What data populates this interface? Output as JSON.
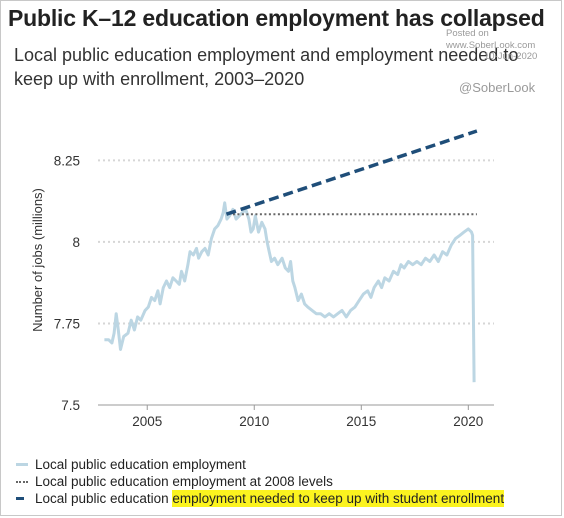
{
  "header": {
    "title": "Public K–12 education employment has collapsed",
    "subtitle": "Local public education employment and employment needed to keep up with enrollment, 2003–2020",
    "posted_label": "Posted on",
    "posted_site": "www.SoberLook.com",
    "posted_date": "10-Jun-2020",
    "handle": "@SoberLook"
  },
  "colors": {
    "employment": "#bcd6e3",
    "level_2008": "#666666",
    "needed": "#1f4e79",
    "highlight": "#fbf31f",
    "grid": "#d6d6d6"
  },
  "legend": {
    "employment": "Local public education employment",
    "level_2008": "Local public education employment at 2008 levels",
    "needed_part1": "Local public education ",
    "needed_part2": "employment needed to keep up with student enrollment"
  },
  "chart_data": {
    "type": "line",
    "ylabel": "Number of jobs (millions)",
    "xlabel": "",
    "xlim": [
      2002.7,
      2021.2
    ],
    "ylim": [
      7.5,
      8.34
    ],
    "y_ticks": [
      7.5,
      7.75,
      8,
      8.25
    ],
    "y_tick_labels": [
      "7.5",
      "7.75",
      "8",
      "8.25"
    ],
    "x_ticks": [
      2005,
      2010,
      2015,
      2020
    ],
    "x_tick_labels": [
      "2005",
      "2010",
      "2015",
      "2020"
    ],
    "grid": "horizontal dotted",
    "legend_position": "bottom",
    "series": [
      {
        "name": "Local public education employment",
        "style": "solid",
        "points": [
          [
            2003.0,
            7.7
          ],
          [
            2003.2,
            7.7
          ],
          [
            2003.35,
            7.69
          ],
          [
            2003.45,
            7.72
          ],
          [
            2003.55,
            7.78
          ],
          [
            2003.65,
            7.73
          ],
          [
            2003.75,
            7.67
          ],
          [
            2003.9,
            7.71
          ],
          [
            2004.1,
            7.72
          ],
          [
            2004.25,
            7.76
          ],
          [
            2004.4,
            7.73
          ],
          [
            2004.55,
            7.77
          ],
          [
            2004.7,
            7.76
          ],
          [
            2004.9,
            7.79
          ],
          [
            2005.05,
            7.8
          ],
          [
            2005.2,
            7.83
          ],
          [
            2005.35,
            7.82
          ],
          [
            2005.5,
            7.85
          ],
          [
            2005.6,
            7.81
          ],
          [
            2005.75,
            7.86
          ],
          [
            2005.9,
            7.88
          ],
          [
            2006.05,
            7.86
          ],
          [
            2006.2,
            7.89
          ],
          [
            2006.35,
            7.88
          ],
          [
            2006.5,
            7.87
          ],
          [
            2006.6,
            7.91
          ],
          [
            2006.75,
            7.88
          ],
          [
            2006.9,
            7.93
          ],
          [
            2007.0,
            7.97
          ],
          [
            2007.15,
            7.96
          ],
          [
            2007.3,
            7.98
          ],
          [
            2007.4,
            7.95
          ],
          [
            2007.55,
            7.97
          ],
          [
            2007.7,
            7.98
          ],
          [
            2007.85,
            7.96
          ],
          [
            2008.0,
            8.01
          ],
          [
            2008.15,
            8.04
          ],
          [
            2008.3,
            8.05
          ],
          [
            2008.45,
            8.07
          ],
          [
            2008.55,
            8.09
          ],
          [
            2008.62,
            8.12
          ],
          [
            2008.72,
            8.07
          ],
          [
            2008.85,
            8.08
          ],
          [
            2009.0,
            8.1
          ],
          [
            2009.15,
            8.07
          ],
          [
            2009.3,
            8.08
          ],
          [
            2009.45,
            8.09
          ],
          [
            2009.6,
            8.1
          ],
          [
            2009.75,
            8.07
          ],
          [
            2009.85,
            8.03
          ],
          [
            2009.95,
            8.04
          ],
          [
            2010.05,
            8.08
          ],
          [
            2010.2,
            8.03
          ],
          [
            2010.35,
            8.06
          ],
          [
            2010.5,
            8.04
          ],
          [
            2010.6,
            8.0
          ],
          [
            2010.7,
            7.97
          ],
          [
            2010.8,
            7.94
          ],
          [
            2010.95,
            7.95
          ],
          [
            2011.1,
            7.93
          ],
          [
            2011.3,
            7.95
          ],
          [
            2011.45,
            7.92
          ],
          [
            2011.6,
            7.91
          ],
          [
            2011.7,
            7.94
          ],
          [
            2011.8,
            7.88
          ],
          [
            2011.9,
            7.86
          ],
          [
            2012.05,
            7.82
          ],
          [
            2012.2,
            7.84
          ],
          [
            2012.35,
            7.81
          ],
          [
            2012.5,
            7.8
          ],
          [
            2012.7,
            7.79
          ],
          [
            2012.9,
            7.78
          ],
          [
            2013.1,
            7.78
          ],
          [
            2013.3,
            7.77
          ],
          [
            2013.5,
            7.78
          ],
          [
            2013.7,
            7.77
          ],
          [
            2013.9,
            7.78
          ],
          [
            2014.1,
            7.79
          ],
          [
            2014.3,
            7.77
          ],
          [
            2014.5,
            7.79
          ],
          [
            2014.7,
            7.8
          ],
          [
            2014.9,
            7.82
          ],
          [
            2015.1,
            7.84
          ],
          [
            2015.3,
            7.85
          ],
          [
            2015.45,
            7.83
          ],
          [
            2015.6,
            7.86
          ],
          [
            2015.8,
            7.88
          ],
          [
            2015.95,
            7.86
          ],
          [
            2016.1,
            7.89
          ],
          [
            2016.3,
            7.88
          ],
          [
            2016.5,
            7.91
          ],
          [
            2016.7,
            7.9
          ],
          [
            2016.85,
            7.93
          ],
          [
            2017.0,
            7.92
          ],
          [
            2017.2,
            7.94
          ],
          [
            2017.4,
            7.93
          ],
          [
            2017.6,
            7.94
          ],
          [
            2017.8,
            7.93
          ],
          [
            2018.0,
            7.95
          ],
          [
            2018.2,
            7.94
          ],
          [
            2018.4,
            7.96
          ],
          [
            2018.6,
            7.94
          ],
          [
            2018.8,
            7.97
          ],
          [
            2019.0,
            7.96
          ],
          [
            2019.2,
            7.99
          ],
          [
            2019.4,
            8.01
          ],
          [
            2019.6,
            8.02
          ],
          [
            2019.8,
            8.03
          ],
          [
            2020.0,
            8.04
          ],
          [
            2020.15,
            8.03
          ],
          [
            2020.2,
            8.02
          ],
          [
            2020.27,
            7.57
          ]
        ]
      },
      {
        "name": "Local public education employment at 2008 levels",
        "style": "dotted",
        "points": [
          [
            2009.0,
            8.085
          ],
          [
            2020.4,
            8.085
          ]
        ]
      },
      {
        "name": "Local public education employment needed to keep up with student enrollment",
        "style": "dashed",
        "points": [
          [
            2008.7,
            8.085
          ],
          [
            2020.4,
            8.34
          ]
        ]
      }
    ]
  }
}
